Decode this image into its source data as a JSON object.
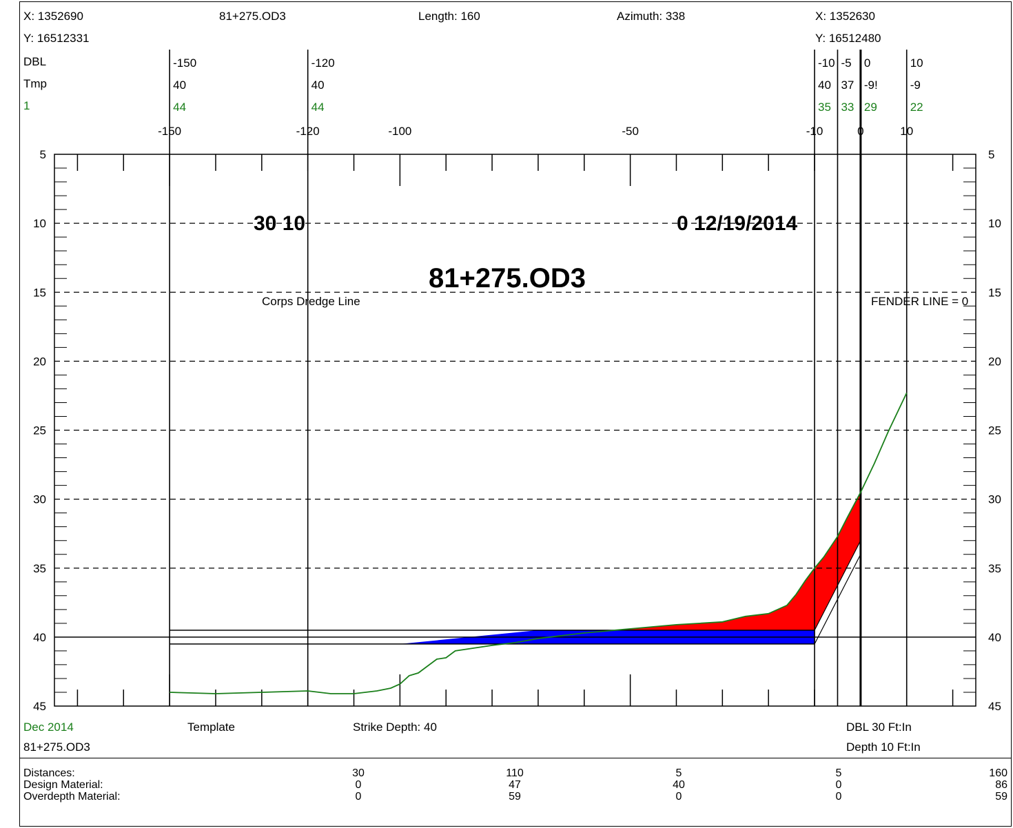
{
  "header": {
    "left_x": "X: 1352690",
    "left_y": "Y: 16512331",
    "station": "81+275.OD3",
    "length": "Length: 160",
    "azimuth": "Azimuth: 338",
    "right_x": "X: 1352630",
    "right_y": "Y: 16512480"
  },
  "rows": {
    "labels": [
      "DBL",
      "Tmp",
      "1"
    ],
    "columns": [
      {
        "x": -150,
        "dbl": "-150",
        "tmp": "40",
        "one": "44"
      },
      {
        "x": -120,
        "dbl": "-120",
        "tmp": "40",
        "one": "44"
      },
      {
        "x": -10,
        "dbl": "-10",
        "tmp": "40",
        "one": "35"
      },
      {
        "x": -5,
        "dbl": "-5",
        "tmp": "37",
        "one": "33"
      },
      {
        "x": 0,
        "dbl": "0",
        "tmp": "-9!",
        "one": "29"
      },
      {
        "x": 10,
        "dbl": "10",
        "tmp": "-9",
        "one": "22"
      }
    ]
  },
  "chart_data": {
    "type": "line",
    "title": "81+275.OD3",
    "annotations": {
      "left_note": "30 10",
      "right_note": "0 12/19/2014",
      "corps_label": "Corps Dredge Line",
      "fender_label": "FENDER LINE = 0"
    },
    "xlim": [
      -175,
      25
    ],
    "ylim": [
      45,
      5
    ],
    "x_ticks": [
      -150,
      -120,
      -100,
      -50,
      -10,
      0,
      10
    ],
    "y_ticks": [
      5,
      10,
      15,
      20,
      25,
      30,
      35,
      40,
      45
    ],
    "dashed_grid_y": [
      10,
      15,
      20,
      25,
      30,
      35
    ],
    "strike_depth": 40,
    "vertical_lines_x": [
      -150,
      -120,
      -10,
      -5,
      0,
      10
    ],
    "series": [
      {
        "name": "Dec 2014",
        "color": "#1a7f1a",
        "x": [
          -150,
          -140,
          -130,
          -120,
          -115,
          -110,
          -105,
          -102,
          -100,
          -98,
          -96,
          -94,
          -92,
          -90,
          -88,
          -86,
          -84,
          -80,
          -75,
          -70,
          -60,
          -50,
          -40,
          -30,
          -25,
          -20,
          -16,
          -14,
          -12,
          -10,
          -8,
          -5,
          -3,
          0,
          3,
          6,
          10
        ],
        "y": [
          44.0,
          44.1,
          44.0,
          43.9,
          44.1,
          44.1,
          43.9,
          43.7,
          43.4,
          42.8,
          42.6,
          42.1,
          41.6,
          41.5,
          41.0,
          40.9,
          40.8,
          40.6,
          40.4,
          40.1,
          39.7,
          39.4,
          39.1,
          38.9,
          38.5,
          38.3,
          37.7,
          36.9,
          35.9,
          35.0,
          34.2,
          32.7,
          31.4,
          29.5,
          27.4,
          25.1,
          22.3
        ]
      }
    ],
    "template": {
      "name": "Template",
      "design_depth": 39.5,
      "overdepth": 40.5,
      "toe_x": -10,
      "top_x": 0,
      "design_top_y": 30,
      "overdepth_top_y": 33
    },
    "fills": {
      "design_color": "#ff0000",
      "overdepth_color": "#0000ff"
    }
  },
  "footer": {
    "series_label": "Dec 2014",
    "station": "81+275.OD3",
    "template": "Template",
    "strike": "Strike Depth: 40",
    "dbl": "DBL 30 Ft:In",
    "depth": "Depth 10 Ft:In"
  },
  "table": {
    "row_labels": [
      "Distances:",
      "Design Material:",
      "Overdepth Material:"
    ],
    "columns": [
      {
        "values": [
          "30",
          "0",
          "0"
        ]
      },
      {
        "values": [
          "110",
          "47",
          "59"
        ]
      },
      {
        "values": [
          "5",
          "40",
          "0"
        ]
      },
      {
        "values": [
          "5",
          "0",
          "0"
        ]
      },
      {
        "values": [
          "160",
          "86",
          "59"
        ]
      }
    ]
  }
}
